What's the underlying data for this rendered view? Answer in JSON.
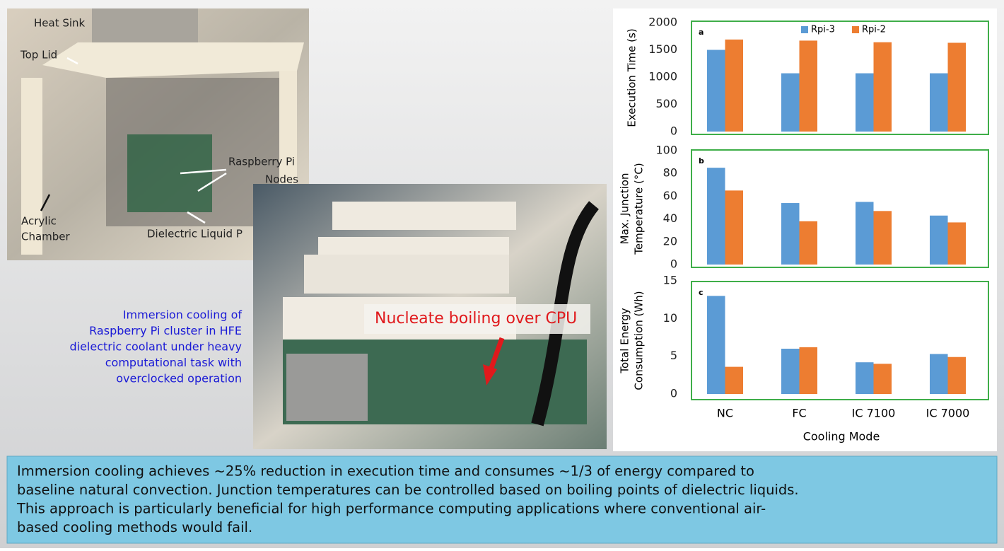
{
  "photo_labels": {
    "heat_sink": "Heat Sink",
    "top_lid": "Top Lid",
    "raspberry_pi_nodes": [
      "Raspberry Pi",
      "Nodes"
    ],
    "acrylic_chamber": [
      "Acrylic",
      "Chamber"
    ],
    "dielectric_liquid": "Dielectric Liquid P",
    "nucleate_boiling": "Nucleate boiling over CPU"
  },
  "caption": [
    "Immersion  cooling of",
    "Raspberry  Pi cluster in HFE",
    "dielectric coolant under heavy",
    "computational  task with",
    "overclocked operation"
  ],
  "summary": [
    "Immersion cooling achieves ~25% reduction in execution time and consumes ~1/3 of energy compared to",
    "baseline natural convection. Junction temperatures can be controlled based on boiling points of dielectric liquids.",
    "This approach is particularly beneficial for high performance computing applications where conventional air-",
    "based cooling methods would fail."
  ],
  "chart_data": [
    {
      "type": "bar",
      "panel_label": "a",
      "ylabel": [
        "Execution Time (s)"
      ],
      "ylim": [
        0,
        2000
      ],
      "yticks": [
        0,
        500,
        1000,
        1500,
        2000
      ],
      "frame_color": "#3fae49",
      "legend": "top",
      "series": [
        {
          "name": "Rpi-3",
          "color": "#5b9bd5",
          "values": [
            1500,
            1070,
            1070,
            1070
          ]
        },
        {
          "name": "Rpi-2",
          "color": "#ed7d31",
          "values": [
            1690,
            1670,
            1640,
            1630
          ]
        }
      ]
    },
    {
      "type": "bar",
      "panel_label": "b",
      "ylabel": [
        "Max. Junction",
        "Temperature (°C)"
      ],
      "ylim": [
        0,
        100
      ],
      "yticks": [
        0,
        20,
        40,
        60,
        80,
        100
      ],
      "frame_color": "#3fae49",
      "series": [
        {
          "color": "#5b9bd5",
          "values": [
            85,
            54,
            55,
            43
          ]
        },
        {
          "color": "#ed7d31",
          "values": [
            65,
            38,
            47,
            37
          ]
        }
      ]
    },
    {
      "type": "bar",
      "panel_label": "c",
      "ylabel": [
        "Total Energy",
        "Consumption (Wh)"
      ],
      "ylim": [
        0,
        15
      ],
      "yticks": [
        0,
        5,
        10,
        15
      ],
      "frame_color": "#3fae49",
      "categories": [
        "NC",
        "FC",
        "IC 7100",
        "IC 7000"
      ],
      "xlabel": "Cooling Mode",
      "series": [
        {
          "color": "#5b9bd5",
          "values": [
            13,
            6,
            4.2,
            5.3
          ]
        },
        {
          "color": "#ed7d31",
          "values": [
            3.6,
            6.2,
            4,
            4.9
          ]
        }
      ]
    }
  ]
}
